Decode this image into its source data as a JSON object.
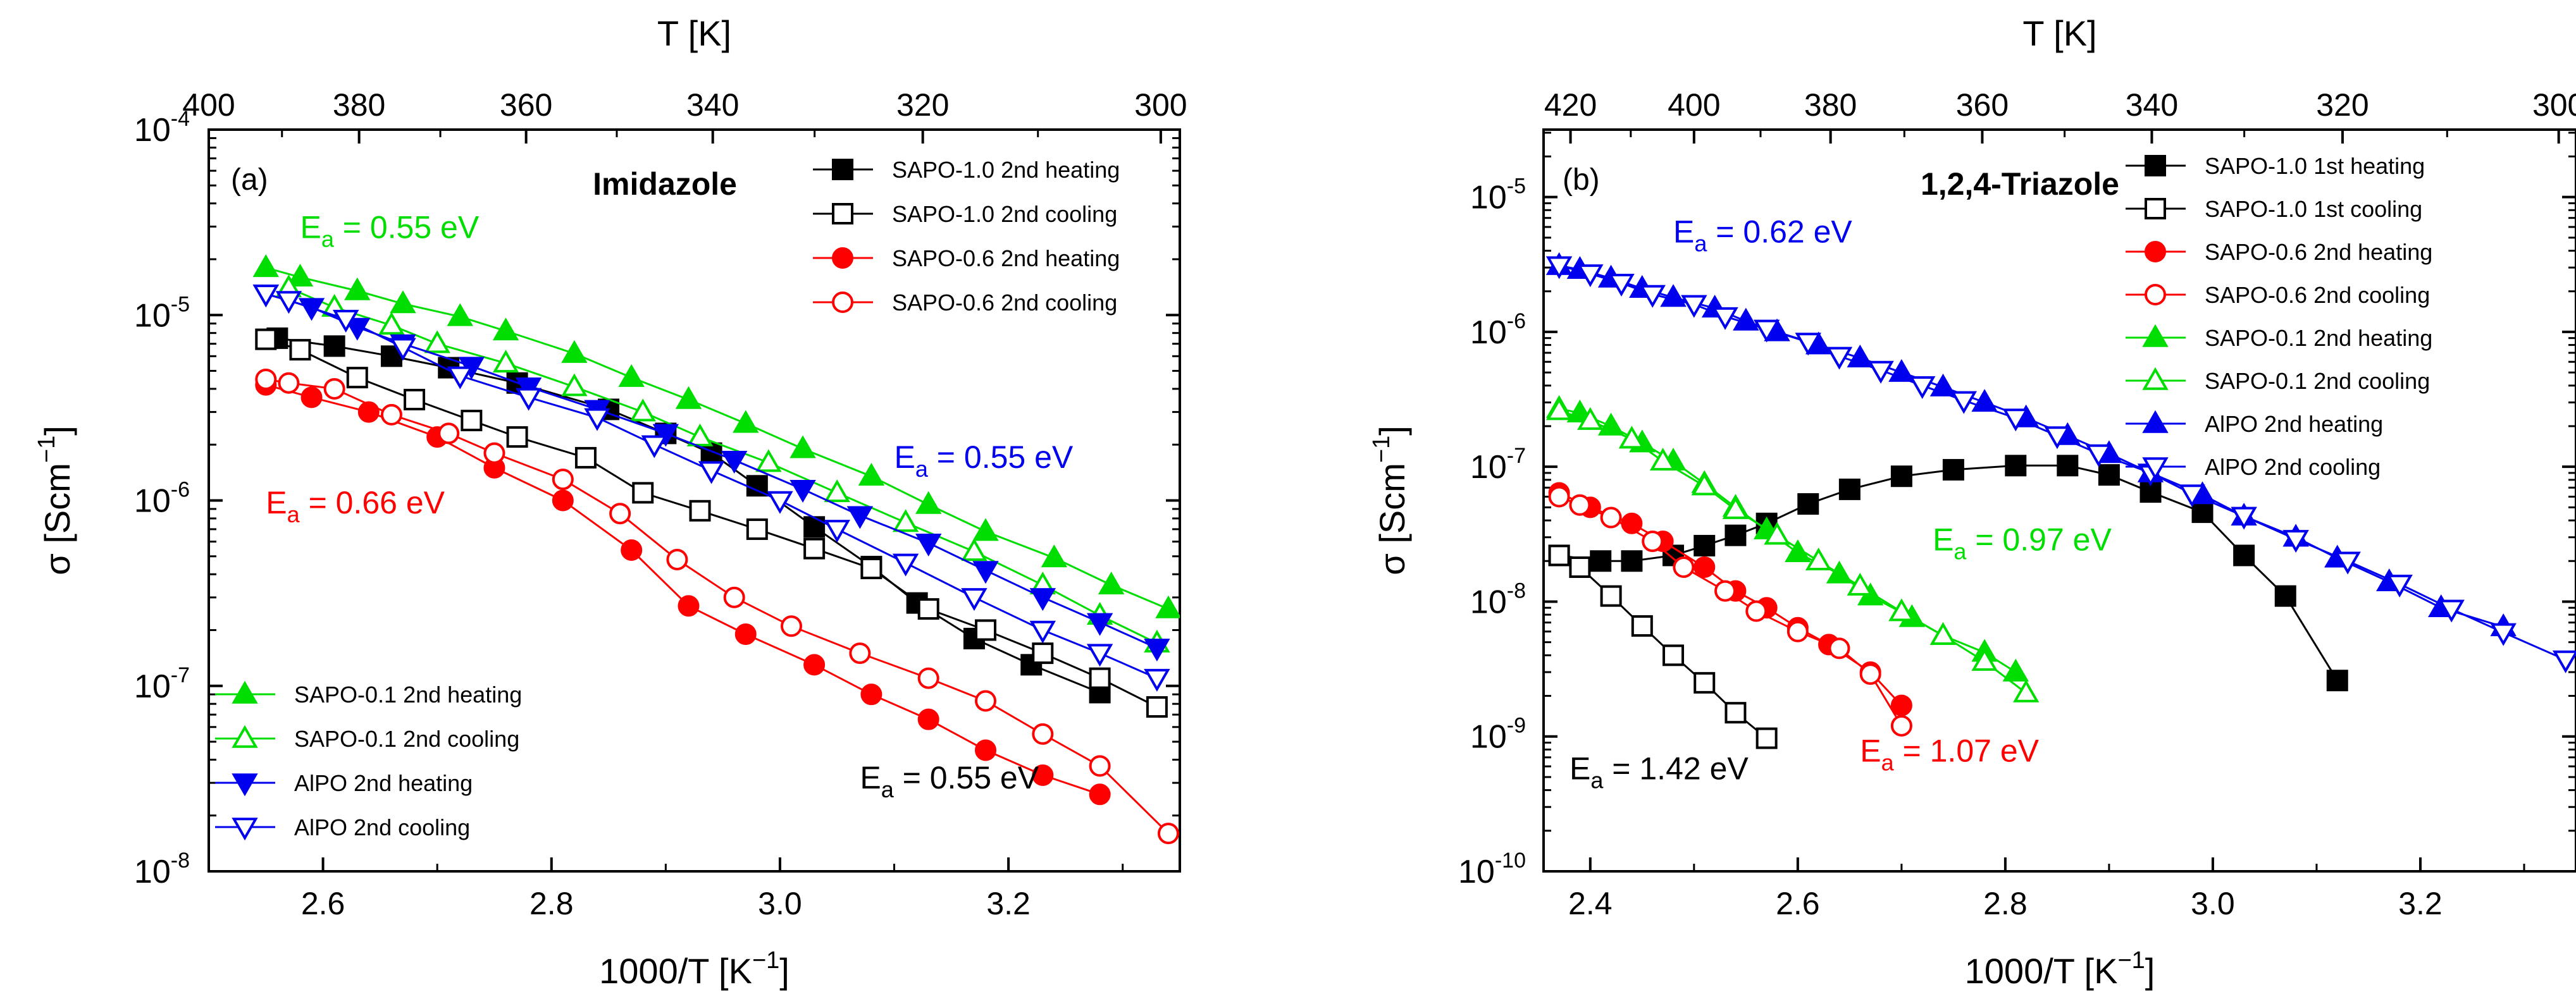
{
  "chart_data": [
    {
      "id": "a",
      "type": "scatter",
      "panel_label": "(a)",
      "title": "Imidazole",
      "xlabel": "1000/T [K",
      "xlabel_sup": "−1",
      "xlabel_end": "]",
      "ylabel": "σ [Scm",
      "ylabel_sup": "−1",
      "ylabel_end": "]",
      "top_axis_label": "T [K]",
      "xlim": [
        2.5,
        3.35
      ],
      "ylim_log10": [
        -8,
        -4
      ],
      "xticks": [
        2.6,
        2.8,
        3.0,
        3.2
      ],
      "xticklabels": [
        "2.6",
        "2.8",
        "3.0",
        "3.2"
      ],
      "top_ticks_K": [
        400,
        380,
        360,
        340,
        320,
        300
      ],
      "top_ticklabels": [
        "400",
        "380",
        "360",
        "340",
        "320",
        "300"
      ],
      "yticks_exp": [
        -8,
        -7,
        -6,
        -5,
        -4
      ],
      "ytick_base": "10",
      "yticklabels_exp": [
        "-8",
        "-7",
        "-6",
        "-5",
        "-4"
      ],
      "series": [
        {
          "name": "SAPO-1.0 2nd heating",
          "color": "#000000",
          "marker": "square",
          "fill": true,
          "x": [
            2.56,
            2.61,
            2.66,
            2.71,
            2.77,
            2.85,
            2.9,
            2.94,
            2.98,
            3.03,
            3.08,
            3.12,
            3.17,
            3.22,
            3.28
          ],
          "y": [
            7.5e-06,
            6.8e-06,
            6e-06,
            5.2e-06,
            4.3e-06,
            3.1e-06,
            2.3e-06,
            1.8e-06,
            1.2e-06,
            7.2e-07,
            4.4e-07,
            2.8e-07,
            1.8e-07,
            1.3e-07,
            9.2e-08
          ]
        },
        {
          "name": "SAPO-1.0 2nd cooling",
          "color": "#000000",
          "marker": "square",
          "fill": false,
          "x": [
            2.55,
            2.58,
            2.63,
            2.68,
            2.73,
            2.77,
            2.83,
            2.88,
            2.93,
            2.98,
            3.03,
            3.08,
            3.13,
            3.18,
            3.23,
            3.28,
            3.33
          ],
          "y": [
            7.4e-06,
            6.5e-06,
            4.6e-06,
            3.5e-06,
            2.7e-06,
            2.2e-06,
            1.7e-06,
            1.1e-06,
            8.8e-07,
            7e-07,
            5.5e-07,
            4.3e-07,
            2.6e-07,
            2e-07,
            1.5e-07,
            1.1e-07,
            7.7e-08
          ]
        },
        {
          "name": "SAPO-0.6 2nd heating",
          "color": "#ff0000",
          "marker": "circle",
          "fill": true,
          "x": [
            2.55,
            2.59,
            2.64,
            2.7,
            2.75,
            2.81,
            2.87,
            2.92,
            2.97,
            3.03,
            3.08,
            3.13,
            3.18,
            3.23,
            3.28
          ],
          "y": [
            4.2e-06,
            3.6e-06,
            3e-06,
            2.2e-06,
            1.5e-06,
            1e-06,
            5.4e-07,
            2.7e-07,
            1.9e-07,
            1.3e-07,
            9e-08,
            6.6e-08,
            4.5e-08,
            3.3e-08,
            2.6e-08
          ]
        },
        {
          "name": "SAPO-0.6 2nd cooling",
          "color": "#ff0000",
          "marker": "circle",
          "fill": false,
          "x": [
            2.55,
            2.57,
            2.61,
            2.66,
            2.71,
            2.75,
            2.81,
            2.86,
            2.91,
            2.96,
            3.01,
            3.07,
            3.13,
            3.18,
            3.23,
            3.28,
            3.34
          ],
          "y": [
            4.5e-06,
            4.3e-06,
            4e-06,
            2.9e-06,
            2.3e-06,
            1.8e-06,
            1.3e-06,
            8.5e-07,
            4.8e-07,
            3e-07,
            2.1e-07,
            1.5e-07,
            1.1e-07,
            8.3e-08,
            5.5e-08,
            3.7e-08,
            1.6e-08
          ]
        },
        {
          "name": "SAPO-0.1 2nd heating",
          "color": "#00dd00",
          "marker": "triangle-up",
          "fill": true,
          "x": [
            2.55,
            2.58,
            2.63,
            2.67,
            2.72,
            2.76,
            2.82,
            2.87,
            2.92,
            2.97,
            3.02,
            3.08,
            3.13,
            3.18,
            3.24,
            3.29,
            3.34
          ],
          "y": [
            1.8e-05,
            1.6e-05,
            1.35e-05,
            1.15e-05,
            9.8e-06,
            8.2e-06,
            6.2e-06,
            4.6e-06,
            3.5e-06,
            2.6e-06,
            1.9e-06,
            1.35e-06,
            9.5e-07,
            6.8e-07,
            4.9e-07,
            3.5e-07,
            2.6e-07
          ]
        },
        {
          "name": "SAPO-0.1 2nd cooling",
          "color": "#00dd00",
          "marker": "triangle-up",
          "fill": false,
          "x": [
            2.57,
            2.61,
            2.66,
            2.7,
            2.76,
            2.82,
            2.88,
            2.93,
            2.99,
            3.05,
            3.11,
            3.17,
            3.23,
            3.28,
            3.33
          ],
          "y": [
            1.4e-05,
            1.1e-05,
            8.8e-06,
            7e-06,
            5.5e-06,
            4.1e-06,
            3e-06,
            2.2e-06,
            1.6e-06,
            1.1e-06,
            7.6e-07,
            5.3e-07,
            3.5e-07,
            2.4e-07,
            1.7e-07
          ]
        },
        {
          "name": "AlPO 2nd heating",
          "color": "#0000ee",
          "marker": "triangle-down",
          "fill": true,
          "x": [
            2.55,
            2.59,
            2.63,
            2.67,
            2.73,
            2.78,
            2.84,
            2.9,
            2.96,
            3.02,
            3.07,
            3.13,
            3.18,
            3.23,
            3.28,
            3.33
          ],
          "y": [
            1.3e-05,
            1.1e-05,
            8.6e-06,
            7e-06,
            5.3e-06,
            4.1e-06,
            3.1e-06,
            2.3e-06,
            1.65e-06,
            1.15e-06,
            8.3e-07,
            5.9e-07,
            4.2e-07,
            3e-07,
            2.2e-07,
            1.6e-07
          ]
        },
        {
          "name": "AlPO 2nd cooling",
          "color": "#0000ee",
          "marker": "triangle-down",
          "fill": false,
          "x": [
            2.55,
            2.57,
            2.62,
            2.67,
            2.72,
            2.78,
            2.84,
            2.89,
            2.94,
            3.0,
            3.05,
            3.11,
            3.17,
            3.23,
            3.28,
            3.33
          ],
          "y": [
            1.3e-05,
            1.2e-05,
            9.5e-06,
            6.7e-06,
            4.7e-06,
            3.6e-06,
            2.8e-06,
            2e-06,
            1.45e-06,
            1e-06,
            7e-07,
            4.6e-07,
            3e-07,
            2e-07,
            1.5e-07,
            1.1e-07
          ]
        }
      ],
      "annotations": [
        {
          "main": "E",
          "sub": "a",
          "rest": " = 0.55 eV",
          "color": "#00dd00",
          "x": 2.58,
          "y": 2.6e-05
        },
        {
          "main": "E",
          "sub": "a",
          "rest": " = 0.55 eV",
          "color": "#0000ee",
          "x": 3.1,
          "y": 1.5e-06
        },
        {
          "main": "E",
          "sub": "a",
          "rest": " = 0.66 eV",
          "color": "#ff0000",
          "x": 2.55,
          "y": 8.5e-07
        },
        {
          "main": "E",
          "sub": "a",
          "rest": " = 0.55 eV",
          "color": "#000000",
          "x": 3.07,
          "y": 2.8e-08
        }
      ],
      "legends": [
        {
          "position": "top-right",
          "series": [
            0,
            1,
            2,
            3
          ]
        },
        {
          "position": "bottom-left",
          "series": [
            4,
            5,
            6,
            7
          ]
        }
      ]
    },
    {
      "id": "b",
      "type": "scatter",
      "panel_label": "(b)",
      "title": "1,2,4-Triazole",
      "xlabel": "1000/T [K",
      "xlabel_sup": "−1",
      "xlabel_end": "]",
      "ylabel": "σ [Scm",
      "ylabel_sup": "−1",
      "ylabel_end": "]",
      "top_axis_label": "T [K]",
      "xlim": [
        2.355,
        3.35
      ],
      "ylim_log10": [
        -10,
        -4.5
      ],
      "xticks": [
        2.4,
        2.6,
        2.8,
        3.0,
        3.2
      ],
      "xticklabels": [
        "2.4",
        "2.6",
        "2.8",
        "3.0",
        "3.2"
      ],
      "top_ticks_K": [
        420,
        400,
        380,
        360,
        340,
        320,
        300
      ],
      "top_ticklabels": [
        "420",
        "400",
        "380",
        "360",
        "340",
        "320",
        "300"
      ],
      "yticks_exp": [
        -10,
        -9,
        -8,
        -7,
        -6,
        -5
      ],
      "ytick_base": "10",
      "yticklabels_exp": [
        "-10",
        "-9",
        "-8",
        "-7",
        "-6",
        "-5"
      ],
      "series": [
        {
          "name": "SAPO-1.0 1st heating",
          "color": "#000000",
          "marker": "square",
          "fill": true,
          "x": [
            2.37,
            2.41,
            2.44,
            2.48,
            2.51,
            2.54,
            2.57,
            2.61,
            2.65,
            2.7,
            2.75,
            2.81,
            2.86,
            2.9,
            2.94,
            2.99,
            3.03,
            3.07,
            3.12
          ],
          "y": [
            2.2e-08,
            2e-08,
            2e-08,
            2.2e-08,
            2.6e-08,
            3.1e-08,
            3.8e-08,
            5.3e-08,
            6.8e-08,
            8.5e-08,
            9.5e-08,
            1.02e-07,
            1.02e-07,
            8.7e-08,
            6.5e-08,
            4.6e-08,
            2.2e-08,
            1.1e-08,
            2.6e-09
          ]
        },
        {
          "name": "SAPO-1.0 1st cooling",
          "color": "#000000",
          "marker": "square",
          "fill": false,
          "x": [
            2.37,
            2.39,
            2.42,
            2.45,
            2.48,
            2.51,
            2.54,
            2.57
          ],
          "y": [
            2.2e-08,
            1.8e-08,
            1.1e-08,
            6.6e-09,
            4e-09,
            2.5e-09,
            1.5e-09,
            9.7e-10
          ]
        },
        {
          "name": "SAPO-0.6 2nd heating",
          "color": "#ff0000",
          "marker": "circle",
          "fill": true,
          "x": [
            2.37,
            2.4,
            2.44,
            2.47,
            2.51,
            2.54,
            2.57,
            2.6,
            2.63,
            2.67,
            2.7
          ],
          "y": [
            6.4e-08,
            5e-08,
            3.8e-08,
            2.8e-08,
            1.8e-08,
            1.2e-08,
            9e-09,
            6.4e-09,
            4.8e-09,
            3e-09,
            1.7e-09
          ]
        },
        {
          "name": "SAPO-0.6 2nd cooling",
          "color": "#ff0000",
          "marker": "circle",
          "fill": false,
          "x": [
            2.37,
            2.39,
            2.42,
            2.46,
            2.49,
            2.53,
            2.56,
            2.6,
            2.64,
            2.67,
            2.7
          ],
          "y": [
            6e-08,
            5.2e-08,
            4.2e-08,
            2.8e-08,
            1.8e-08,
            1.2e-08,
            8.5e-09,
            6e-09,
            4.5e-09,
            2.9e-09,
            1.2e-09
          ]
        },
        {
          "name": "SAPO-0.1 2nd heating",
          "color": "#00dd00",
          "marker": "triangle-up",
          "fill": true,
          "x": [
            2.37,
            2.39,
            2.42,
            2.45,
            2.48,
            2.51,
            2.54,
            2.57,
            2.6,
            2.64,
            2.67,
            2.71,
            2.74,
            2.78,
            2.81
          ],
          "y": [
            2.7e-07,
            2.5e-07,
            2e-07,
            1.5e-07,
            1.1e-07,
            7.5e-08,
            5e-08,
            3.4e-08,
            2.3e-08,
            1.6e-08,
            1.1e-08,
            7.6e-09,
            5.6e-09,
            4.2e-09,
            3e-09
          ]
        },
        {
          "name": "SAPO-0.1 2nd cooling",
          "color": "#00dd00",
          "marker": "triangle-up",
          "fill": false,
          "x": [
            2.37,
            2.4,
            2.44,
            2.47,
            2.51,
            2.54,
            2.58,
            2.62,
            2.66,
            2.7,
            2.74,
            2.78,
            2.82
          ],
          "y": [
            2.6e-07,
            2.2e-07,
            1.6e-07,
            1.1e-07,
            7.2e-08,
            4.8e-08,
            3.1e-08,
            2e-08,
            1.3e-08,
            8.4e-09,
            5.6e-09,
            3.6e-09,
            2.1e-09
          ]
        },
        {
          "name": "AlPO 2nd heating",
          "color": "#0000ee",
          "marker": "triangle-up",
          "fill": true,
          "x": [
            2.37,
            2.39,
            2.42,
            2.45,
            2.48,
            2.52,
            2.55,
            2.58,
            2.62,
            2.66,
            2.7,
            2.74,
            2.78,
            2.82,
            2.86,
            2.9,
            2.94,
            2.99,
            3.03,
            3.08,
            3.12,
            3.17,
            3.22,
            3.28
          ],
          "y": [
            3.1e-06,
            2.9e-06,
            2.5e-06,
            2.1e-06,
            1.8e-06,
            1.5e-06,
            1.2e-06,
            1e-06,
            8e-07,
            6.4e-07,
            5e-07,
            3.9e-07,
            3e-07,
            2.3e-07,
            1.7e-07,
            1.25e-07,
            9e-08,
            6.2e-08,
            4.3e-08,
            3e-08,
            2.1e-08,
            1.4e-08,
            9e-09,
            6.5e-09
          ]
        },
        {
          "name": "AlPO 2nd cooling",
          "color": "#0000ee",
          "marker": "triangle-down",
          "fill": false,
          "x": [
            2.37,
            2.4,
            2.43,
            2.46,
            2.5,
            2.53,
            2.57,
            2.61,
            2.64,
            2.68,
            2.72,
            2.76,
            2.81,
            2.85,
            2.89,
            2.94,
            2.98,
            3.03,
            3.08,
            3.13,
            3.18,
            3.23,
            3.28,
            3.34
          ],
          "y": [
            3.1e-06,
            2.7e-06,
            2.3e-06,
            1.9e-06,
            1.6e-06,
            1.3e-06,
            1.05e-06,
            8.4e-07,
            6.6e-07,
            5.2e-07,
            4e-07,
            3.1e-07,
            2.3e-07,
            1.7e-07,
            1.25e-07,
            9e-08,
            6.3e-08,
            4.3e-08,
            2.9e-08,
            2e-08,
            1.35e-08,
            8.8e-09,
            5.9e-09,
            3.7e-09
          ]
        }
      ],
      "annotations": [
        {
          "main": "E",
          "sub": "a",
          "rest": " = 0.62 eV",
          "color": "#0000ee",
          "x": 2.48,
          "y": 4.6e-06
        },
        {
          "main": "E",
          "sub": "a",
          "rest": " = 0.97 eV",
          "color": "#00dd00",
          "x": 2.73,
          "y": 2.4e-08
        },
        {
          "main": "E",
          "sub": "a",
          "rest": " = 1.42 eV",
          "color": "#000000",
          "x": 2.38,
          "y": 4.8e-10
        },
        {
          "main": "E",
          "sub": "a",
          "rest": " = 1.07 eV",
          "color": "#ff0000",
          "x": 2.66,
          "y": 6.5e-10
        }
      ],
      "legends": [
        {
          "position": "top-right",
          "series": [
            0,
            1,
            2,
            3,
            4,
            5,
            6,
            7
          ]
        }
      ]
    }
  ]
}
